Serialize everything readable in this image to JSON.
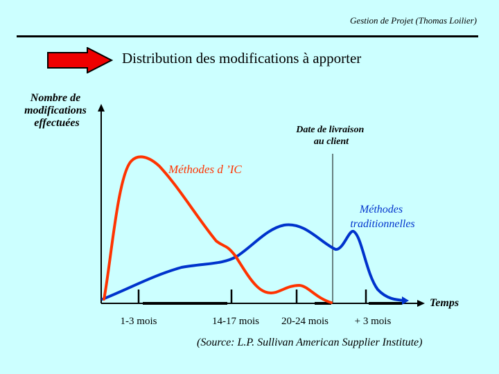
{
  "header": {
    "text": "Gestion de Projet (Thomas Loilier)"
  },
  "title": "Distribution des modifications à apporter",
  "diagram": {
    "y_axis_label": [
      "Nombre de",
      "modifications",
      "effectuées"
    ],
    "x_axis_label": "Temps",
    "delivery_label": [
      "Date de livraison",
      "au client"
    ],
    "curves": [
      {
        "name": "Méthodes d ’IC",
        "color": "#ff3300"
      },
      {
        "name_lines": [
          "Méthodes",
          "traditionnelles"
        ],
        "color": "#0033cc"
      }
    ],
    "ticks": [
      "1-3 mois",
      "14-17 mois",
      "20-24 mois",
      "+ 3 mois"
    ],
    "arrow_color": "#ee0000"
  },
  "source": "(Source: L.P. Sullivan American Supplier Institute)"
}
